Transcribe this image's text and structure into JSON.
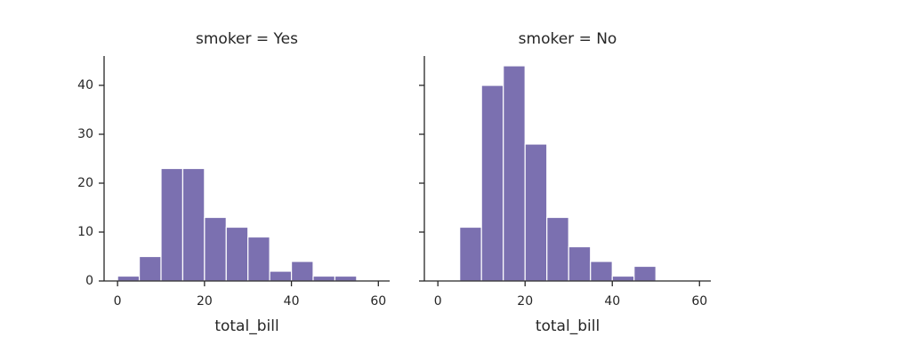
{
  "chart_data": [
    {
      "type": "histogram",
      "title": "smoker = Yes",
      "xlabel": "total_bill",
      "color": "#7b70b0",
      "bins": [
        0,
        5,
        10,
        15,
        20,
        25,
        30,
        35,
        40,
        45,
        50,
        55
      ],
      "values": [
        1,
        5,
        23,
        23,
        13,
        11,
        9,
        2,
        4,
        1,
        1
      ],
      "xlim": [
        -3.1,
        62.6
      ],
      "ylim": [
        0,
        46
      ],
      "xticks": [
        0,
        20,
        40,
        60
      ],
      "yticks": [
        0,
        10,
        20,
        30,
        40
      ]
    },
    {
      "type": "histogram",
      "title": "smoker = No",
      "xlabel": "total_bill",
      "color": "#7b70b0",
      "bins": [
        0,
        5,
        10,
        15,
        20,
        25,
        30,
        35,
        40,
        45,
        50,
        55
      ],
      "values": [
        0,
        11,
        40,
        44,
        28,
        13,
        7,
        4,
        1,
        3,
        0
      ],
      "xlim": [
        -3.1,
        62.6
      ],
      "ylim": [
        0,
        46
      ],
      "xticks": [
        0,
        20,
        40,
        60
      ],
      "sharey": true
    }
  ]
}
